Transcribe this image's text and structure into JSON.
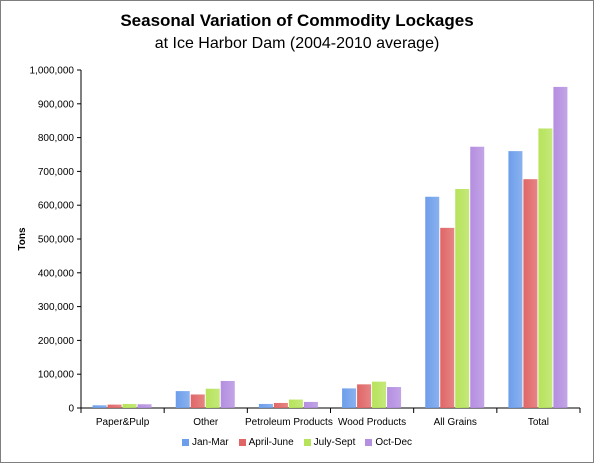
{
  "title": "Seasonal Variation of Commodity Lockages",
  "subtitle": "at Ice Harbor Dam (2004-2010 average)",
  "chart_data": {
    "type": "bar",
    "title": "Seasonal Variation of Commodity Lockages",
    "subtitle": "at Ice Harbor Dam (2004-2010 average)",
    "xlabel": "",
    "ylabel": "Tons",
    "ylim": [
      0,
      1000000
    ],
    "yticks": [
      "0",
      "100,000",
      "200,000",
      "300,000",
      "400,000",
      "500,000",
      "600,000",
      "700,000",
      "800,000",
      "900,000",
      "1,000,000"
    ],
    "categories": [
      "Paper&Pulp",
      "Other",
      "Petroleum Products",
      "Wood Products",
      "All Grains",
      "Total"
    ],
    "series": [
      {
        "name": "Jan-Mar",
        "color": "#6d9eeb",
        "values": [
          8000,
          50000,
          12000,
          58000,
          625000,
          760000
        ]
      },
      {
        "name": "April-June",
        "color": "#e06666",
        "values": [
          10000,
          40000,
          15000,
          70000,
          533000,
          677000
        ]
      },
      {
        "name": "July-Sept",
        "color": "#b6e35a",
        "values": [
          12000,
          57000,
          25000,
          78000,
          648000,
          827000
        ]
      },
      {
        "name": "Oct-Dec",
        "color": "#b48ee0",
        "values": [
          11000,
          80000,
          18000,
          62000,
          773000,
          950000
        ]
      }
    ],
    "grid": false,
    "legend": "bottom"
  }
}
